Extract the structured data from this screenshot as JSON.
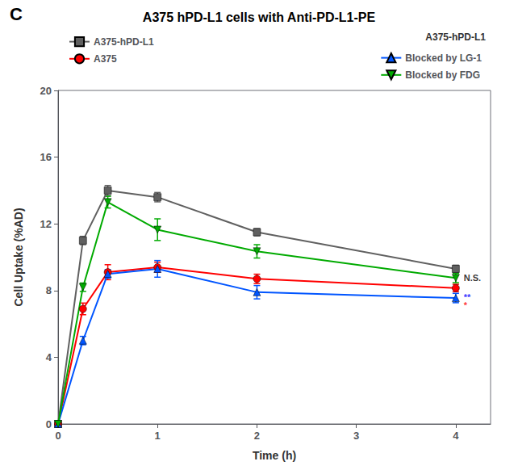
{
  "chart_data": {
    "type": "line",
    "title": "A375 hPD-L1 cells with Anti-PD-L1-PE",
    "panel_label": "C",
    "xlabel": "Time (h)",
    "ylabel": "Cell Uptake (%AD)",
    "xlim": [
      0,
      4.35
    ],
    "ylim": [
      0,
      20
    ],
    "xticks": [
      0,
      1,
      2,
      3,
      4
    ],
    "yticks": [
      0,
      4,
      8,
      12,
      16,
      20
    ],
    "grid": false,
    "legend_title": "A375-hPD-L1",
    "series": [
      {
        "name": "A375-hPD-L1",
        "color": "#606060",
        "marker": "square",
        "x": [
          0,
          0.25,
          0.5,
          1.0,
          2.0,
          4.0
        ],
        "values": [
          0,
          11.0,
          14.0,
          13.6,
          11.5,
          9.3
        ],
        "yerr": [
          0,
          0.25,
          0.3,
          0.28,
          0.22,
          0.22
        ]
      },
      {
        "name": "A375",
        "color": "#ff0000",
        "marker": "circle",
        "x": [
          0,
          0.25,
          0.5,
          1.0,
          2.0,
          4.0
        ],
        "values": [
          0,
          6.9,
          9.1,
          9.4,
          8.7,
          8.15
        ],
        "yerr": [
          0,
          0.35,
          0.45,
          0.3,
          0.28,
          0.22
        ]
      },
      {
        "name": "Blocked by LG-1",
        "color": "#0055ff",
        "marker": "triangle-up",
        "x": [
          0,
          0.25,
          0.5,
          1.0,
          2.0,
          4.0
        ],
        "values": [
          0,
          5.0,
          9.0,
          9.3,
          7.9,
          7.55
        ],
        "yerr": [
          0,
          0.25,
          0.25,
          0.5,
          0.4,
          0.28
        ]
      },
      {
        "name": "Blocked by FDG",
        "color": "#00aa00",
        "marker": "triangle-down",
        "x": [
          0,
          0.25,
          0.5,
          1.0,
          2.0,
          4.0
        ],
        "values": [
          0,
          8.2,
          13.3,
          11.65,
          10.35,
          8.75
        ],
        "yerr": [
          0,
          0.25,
          0.35,
          0.65,
          0.4,
          0.28
        ]
      }
    ],
    "annotations": [
      {
        "text": "N.S.",
        "x": 4.08,
        "y": 8.75,
        "color": "black"
      },
      {
        "text": "**",
        "x": 4.08,
        "y": 7.6,
        "color": "blue"
      },
      {
        "text": "*",
        "x": 4.08,
        "y": 7.1,
        "color": "red"
      }
    ]
  }
}
